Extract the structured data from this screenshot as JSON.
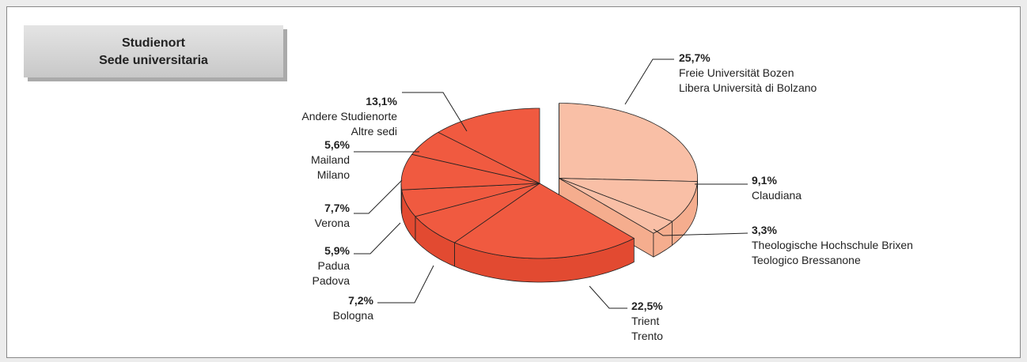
{
  "chart_data": {
    "type": "pie",
    "title": "Studienort",
    "subtitle": "Sede universitaria",
    "categories": [
      [
        "Freie Universität Bozen",
        "Libera Università di Bolzano"
      ],
      [
        "Claudiana"
      ],
      [
        "Theologische Hochschule Brixen",
        "Teologico Bressanone"
      ],
      [
        "Trient",
        "Trento"
      ],
      [
        "Bologna"
      ],
      [
        "Padua",
        "Padova"
      ],
      [
        "Verona"
      ],
      [
        "Mailand",
        "Milano"
      ],
      [
        "Andere Studienorte",
        "Altre sedi"
      ]
    ],
    "values": [
      25.7,
      9.1,
      3.3,
      22.5,
      7.2,
      5.9,
      7.7,
      5.6,
      13.1
    ],
    "value_labels": [
      "25,7%",
      "9,1%",
      "3,3%",
      "22,5%",
      "7,2%",
      "5,9%",
      "7,7%",
      "5,6%",
      "13,1%"
    ],
    "colors": [
      "#f9bfa6",
      "#f9bfa6",
      "#f9bfa6",
      "#f05a40",
      "#f05a40",
      "#f05a40",
      "#f05a40",
      "#f05a40",
      "#f05a40"
    ],
    "explode": [
      true,
      true,
      true,
      false,
      false,
      false,
      false,
      false,
      false
    ]
  }
}
